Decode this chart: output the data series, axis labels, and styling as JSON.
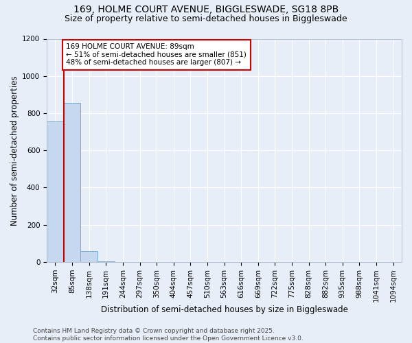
{
  "title_line1": "169, HOLME COURT AVENUE, BIGGLESWADE, SG18 8PB",
  "title_line2": "Size of property relative to semi-detached houses in Biggleswade",
  "bar_labels": [
    "32sqm",
    "85sqm",
    "138sqm",
    "191sqm",
    "244sqm",
    "297sqm",
    "350sqm",
    "404sqm",
    "457sqm",
    "510sqm",
    "563sqm",
    "616sqm",
    "669sqm",
    "722sqm",
    "775sqm",
    "828sqm",
    "882sqm",
    "935sqm",
    "988sqm",
    "1041sqm",
    "1094sqm"
  ],
  "bar_values": [
    757,
    857,
    60,
    3,
    0,
    0,
    0,
    0,
    0,
    0,
    0,
    0,
    0,
    0,
    0,
    0,
    0,
    0,
    0,
    0,
    0
  ],
  "bar_color": "#c5d8f0",
  "bar_edge_color": "#7aadd4",
  "xlabel": "Distribution of semi-detached houses by size in Biggleswade",
  "ylabel": "Number of semi-detached properties",
  "ylim": [
    0,
    1200
  ],
  "yticks": [
    0,
    200,
    400,
    600,
    800,
    1000,
    1200
  ],
  "property_line_x": 0.5,
  "property_line_color": "#cc0000",
  "annotation_text": "169 HOLME COURT AVENUE: 89sqm\n← 51% of semi-detached houses are smaller (851)\n48% of semi-detached houses are larger (807) →",
  "annotation_box_color": "#ffffff",
  "annotation_box_edge": "#cc0000",
  "footer_line1": "Contains HM Land Registry data © Crown copyright and database right 2025.",
  "footer_line2": "Contains public sector information licensed under the Open Government Licence v3.0.",
  "bg_color": "#e8eef8",
  "grid_color": "#ffffff",
  "title_fontsize": 10,
  "subtitle_fontsize": 9,
  "axis_label_fontsize": 8.5,
  "tick_fontsize": 7.5,
  "annotation_fontsize": 7.5,
  "footer_fontsize": 6.5
}
